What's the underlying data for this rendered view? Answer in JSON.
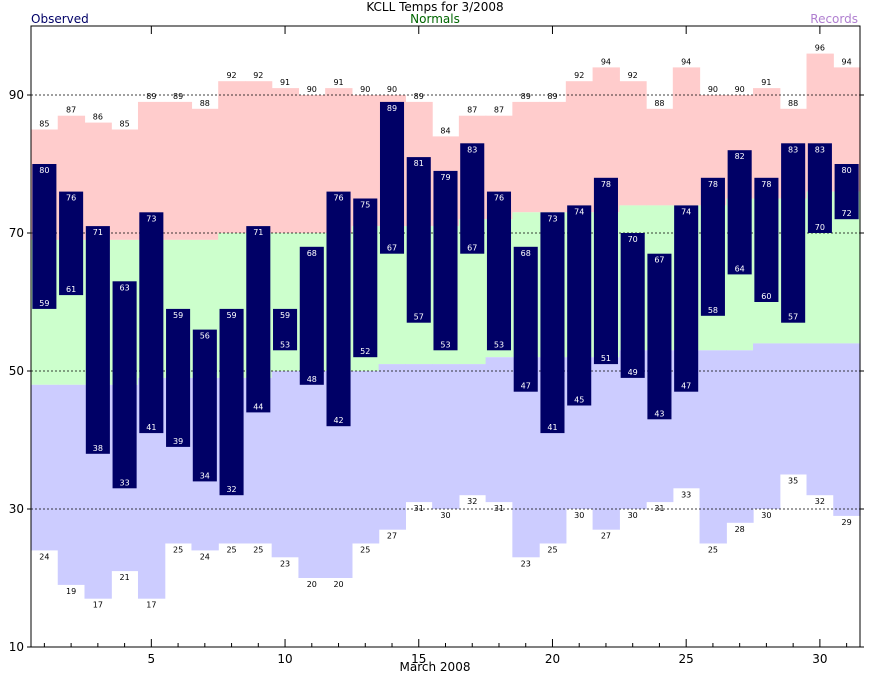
{
  "header": {
    "title": "KCLL Temps for  3/2008",
    "normals_label": "Normals",
    "observed_label": "Observed",
    "records_label": "Records"
  },
  "colors": {
    "observed": "#000066",
    "normals_text": "#006600",
    "records_text": "#b07fd0",
    "record_high_band": "#ffcccc",
    "normal_band": "#ccffcc",
    "record_low_band": "#ccccff"
  },
  "chart_data": {
    "type": "bar",
    "title": "KCLL Temps for  3/2008",
    "xlabel": "March 2008",
    "ylabel": "",
    "ylim": [
      10,
      100
    ],
    "xlim": [
      0.5,
      31.5
    ],
    "yticks": [
      10,
      30,
      50,
      70,
      90
    ],
    "xticks": [
      5,
      10,
      15,
      20,
      25,
      30
    ],
    "grid_dashed_at": [
      30,
      50,
      70,
      90
    ],
    "days": [
      1,
      2,
      3,
      4,
      5,
      6,
      7,
      8,
      9,
      10,
      11,
      12,
      13,
      14,
      15,
      16,
      17,
      18,
      19,
      20,
      21,
      22,
      23,
      24,
      25,
      26,
      27,
      28,
      29,
      30,
      31
    ],
    "series": [
      {
        "name": "Observed",
        "high": [
          80,
          76,
          71,
          63,
          73,
          59,
          56,
          59,
          71,
          59,
          68,
          76,
          75,
          89,
          81,
          79,
          83,
          76,
          68,
          73,
          74,
          78,
          70,
          67,
          74,
          78,
          82,
          78,
          83,
          83,
          80
        ],
        "low": [
          59,
          61,
          38,
          33,
          41,
          39,
          34,
          32,
          44,
          53,
          48,
          42,
          52,
          67,
          57,
          53,
          67,
          53,
          47,
          41,
          45,
          51,
          49,
          43,
          47,
          58,
          64,
          60,
          57,
          70,
          72
        ]
      },
      {
        "name": "Normals",
        "high": [
          69,
          69,
          69,
          69,
          69,
          69,
          69,
          70,
          70,
          70,
          70,
          70,
          71,
          71,
          71,
          71,
          72,
          72,
          73,
          73,
          73,
          73,
          74,
          74,
          74,
          74,
          75,
          75,
          75,
          76,
          76
        ],
        "low": [
          48,
          48,
          48,
          48,
          49,
          49,
          49,
          49,
          49,
          50,
          50,
          50,
          50,
          51,
          51,
          51,
          51,
          52,
          52,
          52,
          52,
          52,
          53,
          53,
          53,
          53,
          53,
          54,
          54,
          54,
          54
        ]
      },
      {
        "name": "Records",
        "high": [
          85,
          87,
          86,
          85,
          89,
          89,
          88,
          92,
          92,
          91,
          90,
          91,
          90,
          90,
          89,
          84,
          87,
          87,
          89,
          89,
          92,
          94,
          92,
          88,
          94,
          90,
          90,
          91,
          88,
          96,
          94
        ],
        "low": [
          24,
          19,
          17,
          21,
          17,
          25,
          24,
          25,
          25,
          23,
          20,
          20,
          25,
          27,
          31,
          30,
          32,
          31,
          23,
          25,
          30,
          27,
          30,
          31,
          33,
          25,
          28,
          30,
          35,
          32,
          29
        ]
      }
    ]
  }
}
